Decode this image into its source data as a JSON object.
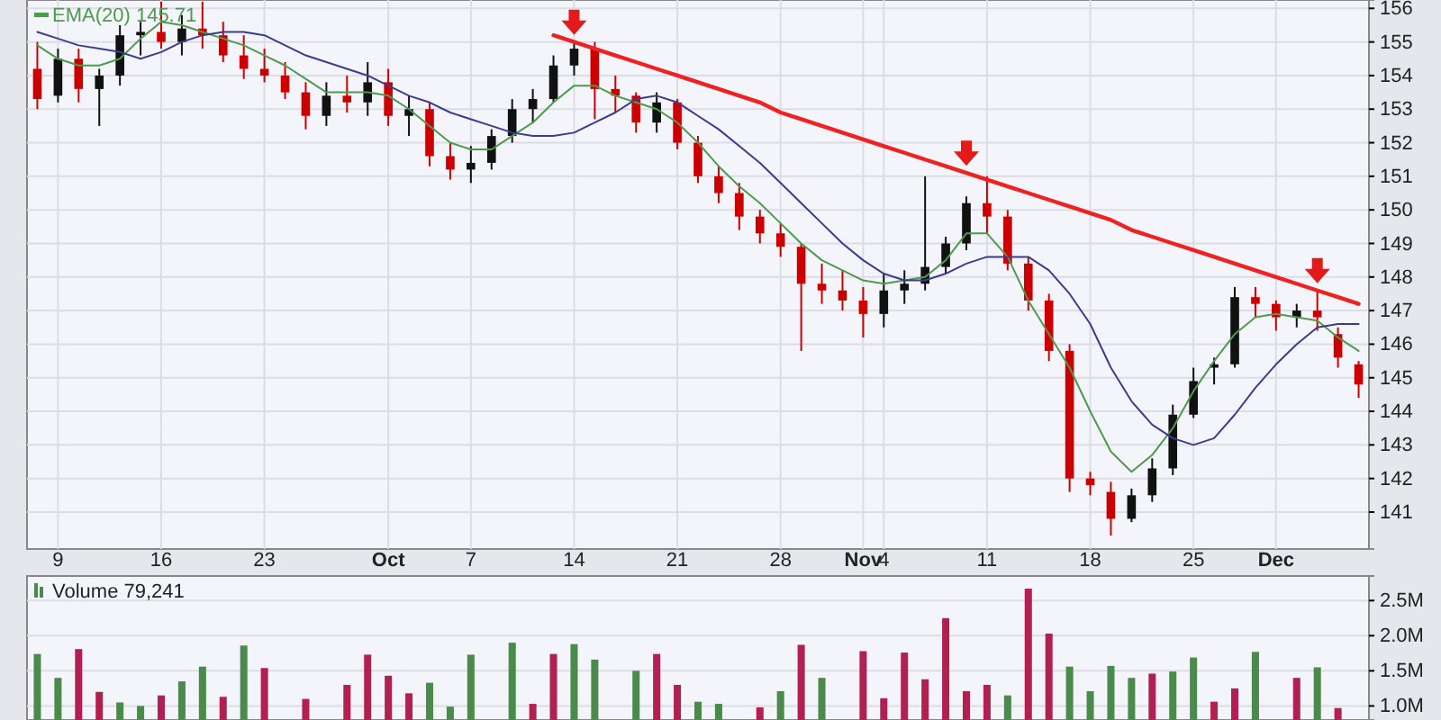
{
  "chart_data": [
    {
      "type": "candlestick",
      "categories": [
        null,
        "9",
        null,
        null,
        null,
        null,
        "16",
        null,
        null,
        null,
        null,
        "23",
        null,
        null,
        null,
        null,
        null,
        "Oct",
        null,
        null,
        null,
        "7",
        null,
        null,
        null,
        null,
        "14",
        null,
        null,
        null,
        null,
        "21",
        null,
        null,
        null,
        null,
        "28",
        null,
        null,
        null,
        "Nov",
        "4",
        null,
        null,
        null,
        null,
        "11",
        null,
        null,
        null,
        null,
        "18",
        null,
        null,
        null,
        null,
        "25",
        null,
        null,
        null,
        "Dec",
        null,
        null,
        null,
        null
      ],
      "ohlc": [
        [
          154.2,
          155,
          153,
          153.3
        ],
        [
          153.4,
          154.8,
          153.2,
          154.5
        ],
        [
          154.5,
          154.8,
          153.2,
          153.6
        ],
        [
          153.6,
          154.2,
          152.5,
          154
        ],
        [
          154,
          155.5,
          153.7,
          155.2
        ],
        [
          155.2,
          155.6,
          154.6,
          155.3
        ],
        [
          155.3,
          156.2,
          154.8,
          155
        ],
        [
          155,
          155.8,
          154.6,
          155.4
        ],
        [
          155.4,
          156.2,
          154.8,
          155.2
        ],
        [
          155.2,
          155.6,
          154.4,
          154.6
        ],
        [
          154.6,
          155.2,
          153.9,
          154.2
        ],
        [
          154.2,
          154.8,
          153.8,
          154
        ],
        [
          154,
          154.4,
          153.3,
          153.5
        ],
        [
          153.5,
          153.8,
          152.4,
          152.8
        ],
        [
          152.8,
          153.8,
          152.5,
          153.4
        ],
        [
          153.4,
          154,
          152.9,
          153.2
        ],
        [
          153.2,
          154.4,
          152.8,
          153.8
        ],
        [
          153.8,
          154.2,
          152.5,
          152.8
        ],
        [
          152.8,
          153.4,
          152.2,
          153
        ],
        [
          153,
          153.2,
          151.3,
          151.6
        ],
        [
          151.6,
          152,
          150.9,
          151.2
        ],
        [
          151.2,
          151.9,
          150.8,
          151.4
        ],
        [
          151.4,
          152.4,
          151.2,
          152.2
        ],
        [
          152.2,
          153.3,
          152,
          153
        ],
        [
          153,
          153.6,
          152.6,
          153.3
        ],
        [
          153.3,
          154.6,
          153.2,
          154.3
        ],
        [
          154.3,
          155,
          154,
          154.8
        ],
        [
          154.8,
          155,
          152.7,
          153.6
        ],
        [
          153.6,
          154,
          152.9,
          153.4
        ],
        [
          153.4,
          153.5,
          152.3,
          152.6
        ],
        [
          152.6,
          153.5,
          152.3,
          153.2
        ],
        [
          153.2,
          153.3,
          151.8,
          152
        ],
        [
          152,
          152.2,
          150.8,
          151
        ],
        [
          151,
          151.3,
          150.2,
          150.5
        ],
        [
          150.5,
          150.8,
          149.4,
          149.8
        ],
        [
          149.8,
          150,
          149,
          149.3
        ],
        [
          149.3,
          149.6,
          148.6,
          148.9
        ],
        [
          148.9,
          149,
          145.8,
          147.8
        ],
        [
          147.8,
          148.4,
          147.2,
          147.6
        ],
        [
          147.6,
          148.2,
          147,
          147.3
        ],
        [
          147.3,
          147.7,
          146.2,
          146.9
        ],
        [
          146.9,
          148.1,
          146.5,
          147.6
        ],
        [
          147.6,
          148.2,
          147.2,
          147.8
        ],
        [
          147.8,
          151,
          147.6,
          148.3
        ],
        [
          148.3,
          149.2,
          148.1,
          149
        ],
        [
          149,
          150.4,
          148.8,
          150.2
        ],
        [
          150.2,
          151,
          149.3,
          149.8
        ],
        [
          149.8,
          150,
          148.2,
          148.4
        ],
        [
          148.4,
          148.6,
          147,
          147.3
        ],
        [
          147.3,
          147.5,
          145.5,
          145.8
        ],
        [
          145.8,
          146,
          141.6,
          142
        ],
        [
          142,
          142.2,
          141.5,
          141.8
        ],
        [
          141.6,
          141.9,
          140.3,
          140.8
        ],
        [
          140.8,
          141.7,
          140.7,
          141.5
        ],
        [
          141.5,
          142.6,
          141.3,
          142.3
        ],
        [
          142.3,
          144.2,
          142.1,
          143.9
        ],
        [
          143.9,
          145.3,
          143.8,
          144.9
        ],
        [
          145.3,
          145.6,
          144.8,
          145.4
        ],
        [
          145.4,
          147.7,
          145.3,
          147.4
        ],
        [
          147.4,
          147.7,
          146.8,
          147.2
        ],
        [
          147.2,
          147.3,
          146.4,
          146.8
        ],
        [
          146.8,
          147.2,
          146.5,
          147
        ],
        [
          147,
          147.6,
          146.4,
          146.8
        ],
        [
          146.3,
          146.5,
          145.3,
          145.6
        ],
        [
          145.4,
          145.5,
          144.4,
          144.8
        ]
      ],
      "colors": [
        "#cc0000",
        "#111111",
        "#cc0000",
        "#111111",
        "#111111",
        "#111111",
        "#cc0000",
        "#111111",
        "#cc0000",
        "#cc0000",
        "#cc0000",
        "#cc0000",
        "#cc0000",
        "#cc0000",
        "#111111",
        "#cc0000",
        "#111111",
        "#cc0000",
        "#111111",
        "#cc0000",
        "#cc0000",
        "#111111",
        "#111111",
        "#111111",
        "#111111",
        "#111111",
        "#111111",
        "#cc0000",
        "#cc0000",
        "#cc0000",
        "#111111",
        "#cc0000",
        "#cc0000",
        "#cc0000",
        "#cc0000",
        "#cc0000",
        "#cc0000",
        "#cc0000",
        "#cc0000",
        "#cc0000",
        "#cc0000",
        "#111111",
        "#111111",
        "#111111",
        "#111111",
        "#111111",
        "#cc0000",
        "#cc0000",
        "#cc0000",
        "#cc0000",
        "#cc0000",
        "#cc0000",
        "#cc0000",
        "#111111",
        "#111111",
        "#111111",
        "#111111",
        "#111111",
        "#111111",
        "#cc0000",
        "#cc0000",
        "#111111",
        "#cc0000",
        "#cc0000",
        "#cc0000"
      ],
      "series": [
        {
          "type": "line",
          "name": "EMA(20) 145.71",
          "color": "#4e9a4e",
          "values": [
            154.9,
            154.5,
            154.3,
            154.3,
            154.5,
            155.1,
            155.6,
            155.5,
            155.3,
            155.1,
            154.9,
            154.6,
            154.3,
            153.9,
            153.5,
            153.5,
            153.5,
            153.4,
            153,
            152.5,
            152,
            151.8,
            151.8,
            152.2,
            152.6,
            153.2,
            153.7,
            153.7,
            153.4,
            153.2,
            153,
            152.6,
            152,
            151.3,
            150.7,
            150.2,
            149.6,
            149,
            148.5,
            148.2,
            147.9,
            147.8,
            147.9,
            148,
            148.5,
            149.3,
            149.3,
            148.6,
            147.3,
            146.3,
            145.3,
            144,
            142.8,
            142.2,
            142.7,
            143.5,
            144.6,
            145.5,
            146.3,
            146.8,
            146.9,
            146.8,
            146.7,
            146.2,
            145.8
          ]
        },
        {
          "type": "line",
          "color": "#3c3c8c",
          "values": [
            155.3,
            155.1,
            154.9,
            154.8,
            154.7,
            154.5,
            154.7,
            155,
            155.2,
            155.3,
            155.3,
            155.2,
            154.9,
            154.6,
            154.4,
            154.2,
            154,
            153.7,
            153.4,
            153.2,
            152.9,
            152.7,
            152.5,
            152.3,
            152.2,
            152.2,
            152.3,
            152.6,
            152.9,
            153.3,
            153.4,
            153.2,
            152.8,
            152.4,
            151.9,
            151.4,
            150.8,
            150.2,
            149.6,
            149,
            148.5,
            148.1,
            147.9,
            147.9,
            148.1,
            148.4,
            148.6,
            148.6,
            148.6,
            148.2,
            147.5,
            146.6,
            145.3,
            144.3,
            143.6,
            143.2,
            143,
            143.2,
            143.9,
            144.7,
            145.4,
            146,
            146.5,
            146.6,
            146.6
          ]
        },
        {
          "type": "line",
          "color": "#ee2222",
          "values": [
            null,
            null,
            null,
            null,
            null,
            null,
            null,
            null,
            null,
            null,
            null,
            null,
            null,
            null,
            null,
            null,
            null,
            null,
            null,
            null,
            null,
            null,
            null,
            null,
            null,
            155.2,
            155,
            154.8,
            154.6,
            154.4,
            154.2,
            154,
            153.8,
            153.6,
            153.4,
            153.2,
            152.9,
            152.7,
            152.5,
            152.3,
            152.1,
            151.9,
            151.7,
            151.5,
            151.3,
            151.1,
            150.9,
            150.7,
            150.5,
            150.3,
            150.1,
            149.9,
            149.7,
            149.4,
            149.2,
            149,
            148.8,
            148.6,
            148.4,
            148.2,
            148,
            147.8,
            147.6,
            147.4,
            147.2
          ]
        }
      ],
      "ylim": [
        139.9,
        156.25
      ],
      "yticks": [
        141,
        142,
        143,
        144,
        145,
        146,
        147,
        148,
        149,
        150,
        151,
        152,
        153,
        154,
        155,
        156
      ],
      "grid": true,
      "legend": "top left"
    },
    {
      "type": "bar",
      "categories": [
        null,
        null,
        null,
        null,
        null,
        null,
        null,
        null,
        null,
        null,
        null,
        null,
        null,
        null,
        null,
        null,
        null,
        null,
        null,
        null,
        null,
        null,
        null,
        null,
        null,
        null,
        null,
        null,
        null,
        null,
        null,
        null,
        null,
        null,
        null,
        null,
        null,
        null,
        null,
        null,
        null,
        null,
        null,
        null,
        null,
        null,
        null,
        null,
        null,
        null,
        null,
        null,
        null,
        null,
        null,
        null,
        null,
        null,
        null,
        null,
        null,
        null,
        null,
        null,
        null
      ],
      "series": [
        {
          "name": "Volume 79,241",
          "color": "#4a8a4a",
          "values": [
            1.74,
            1.4,
            1.81,
            1.2,
            1.05,
            1.0,
            1.15,
            1.35,
            1.56,
            1.13,
            1.86,
            1.54,
            null,
            1.1,
            null,
            1.3,
            1.73,
            1.43,
            1.18,
            1.33,
            0.99,
            1.73,
            null,
            1.9,
            1.03,
            1.74,
            1.88,
            1.66,
            null,
            1.5,
            1.74,
            1.3,
            1.06,
            1.03,
            null,
            0.98,
            1.21,
            1.87,
            1.4,
            null,
            1.78,
            1.11,
            1.76,
            1.38,
            2.25,
            1.21,
            1.3,
            1.15,
            2.67,
            2.03,
            1.56,
            1.21,
            1.57,
            1.4,
            1.46,
            1.49,
            1.69,
            1.06,
            1.25,
            1.77,
            null,
            1.4,
            1.55,
            0.97,
            null
          ],
          "colors": [
            "#4a8a4a",
            "#4a8a4a",
            "#b02050",
            "#b02050",
            "#4a8a4a",
            "#4a8a4a",
            "#b02050",
            "#4a8a4a",
            "#4a8a4a",
            "#b02050",
            "#4a8a4a",
            "#b02050",
            null,
            "#b02050",
            null,
            "#b02050",
            "#b02050",
            "#b02050",
            "#b02050",
            "#4a8a4a",
            "#4a8a4a",
            "#4a8a4a",
            null,
            "#4a8a4a",
            "#b02050",
            "#b02050",
            "#4a8a4a",
            "#4a8a4a",
            null,
            "#4a8a4a",
            "#b02050",
            "#b02050",
            "#4a8a4a",
            "#4a8a4a",
            null,
            "#b02050",
            "#4a8a4a",
            "#b02050",
            "#4a8a4a",
            null,
            "#b02050",
            "#b02050",
            "#b02050",
            "#b02050",
            "#b02050",
            "#b02050",
            "#b02050",
            "#4a8a4a",
            "#b02050",
            "#b02050",
            "#4a8a4a",
            "#4a8a4a",
            "#4a8a4a",
            "#4a8a4a",
            "#b02050",
            "#4a8a4a",
            "#4a8a4a",
            "#b02050",
            "#b02050",
            "#4a8a4a",
            null,
            "#b02050",
            "#4a8a4a",
            "#b02050",
            null
          ]
        }
      ],
      "ylim": [
        0.8,
        2.85
      ],
      "yticks": [
        {
          "value": 1,
          "label": "1.0M"
        },
        {
          "value": 1.5,
          "label": "1.5M"
        },
        {
          "value": 2,
          "label": "2.0M"
        },
        {
          "value": 2.5,
          "label": "2.5M"
        }
      ],
      "grid": true,
      "legend": "top left",
      "tick_labels": "y"
    }
  ]
}
